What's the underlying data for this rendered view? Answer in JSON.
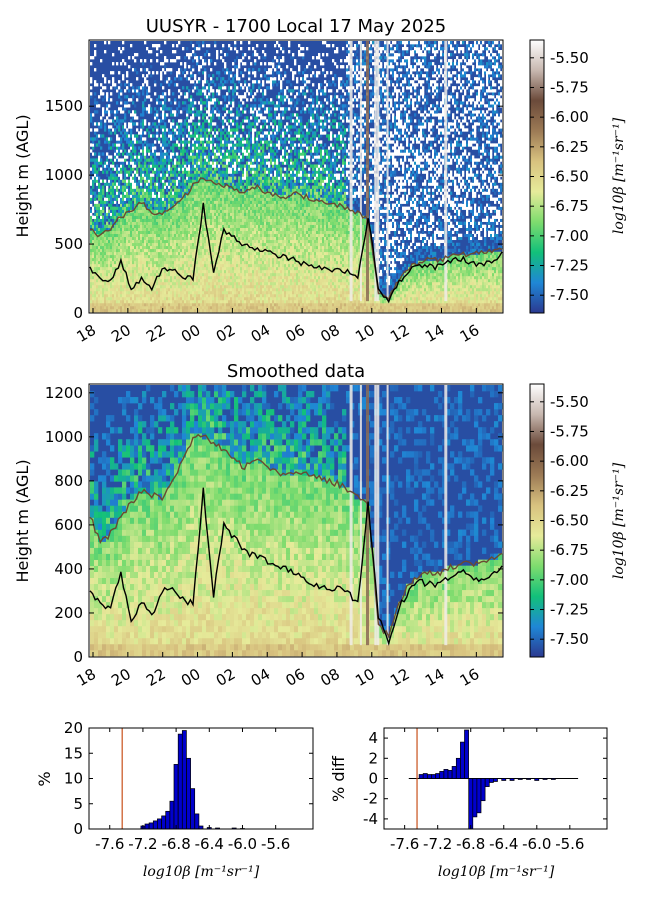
{
  "colorbar": {
    "ticks": [
      "-5.50",
      "-5.75",
      "-6.00",
      "-6.25",
      "-6.50",
      "-6.75",
      "-7.00",
      "-7.25",
      "-7.50"
    ],
    "tick_values": [
      -5.5,
      -5.75,
      -6.0,
      -6.25,
      -6.5,
      -6.75,
      -7.0,
      -7.25,
      -7.5
    ],
    "range": [
      -7.65,
      -5.35
    ],
    "label": "log10β [m⁻¹sr⁻¹]",
    "colors": [
      "#2b3990",
      "#1f87d6",
      "#12c07a",
      "#7edc6e",
      "#e6eb9a",
      "#d8c27f",
      "#9c7a55",
      "#6b4a3a",
      "#c8b8b0",
      "#ffffff"
    ]
  },
  "chart_data": [
    {
      "type": "heatmap",
      "title": "UUSYR - 1700 Local 17 May 2025",
      "ylabel": "Height m (AGL)",
      "xticks": [
        "18",
        "20",
        "22",
        "00",
        "02",
        "04",
        "06",
        "08",
        "10",
        "12",
        "14",
        "16"
      ],
      "yticks": [
        "0",
        "500",
        "1000",
        "1500"
      ],
      "ylim": [
        0,
        1980
      ],
      "series": [
        {
          "values": [
            310,
            240,
            220,
            380,
            170,
            250,
            180,
            300,
            320,
            260,
            240,
            780,
            280,
            600,
            540,
            480,
            470,
            450,
            420,
            400,
            380,
            340,
            330,
            300,
            310,
            290,
            240,
            700,
            180,
            70,
            220,
            300,
            340,
            330,
            330,
            370,
            390,
            360,
            340,
            370,
            420
          ]
        },
        {
          "values": [
            600,
            560,
            600,
            700,
            740,
            800,
            720,
            720,
            760,
            820,
            930,
            980,
            960,
            920,
            900,
            870,
            920,
            880,
            860,
            840,
            860,
            840,
            820,
            800,
            780,
            760,
            720,
            680,
            150,
            100,
            240,
            330,
            370,
            380,
            380,
            410,
            420,
            420,
            430,
            450,
            450
          ]
        }
      ]
    },
    {
      "type": "heatmap",
      "title": "Smoothed data",
      "ylabel": "Height m (AGL)",
      "xticks": [
        "18",
        "20",
        "22",
        "00",
        "02",
        "04",
        "06",
        "08",
        "10",
        "12",
        "14",
        "16"
      ],
      "yticks": [
        "0",
        "200",
        "400",
        "600",
        "800",
        "1000",
        "1200"
      ],
      "ylim": [
        0,
        1240
      ],
      "series": [
        {
          "values": [
            300,
            240,
            220,
            380,
            160,
            250,
            180,
            300,
            320,
            260,
            240,
            760,
            280,
            600,
            540,
            480,
            460,
            440,
            420,
            400,
            380,
            340,
            330,
            300,
            310,
            290,
            240,
            700,
            180,
            60,
            220,
            300,
            340,
            330,
            330,
            370,
            390,
            360,
            340,
            370,
            420
          ]
        },
        {
          "values": [
            640,
            520,
            560,
            640,
            700,
            760,
            740,
            720,
            800,
            900,
            1000,
            1000,
            980,
            940,
            900,
            860,
            900,
            880,
            850,
            820,
            840,
            830,
            820,
            800,
            790,
            760,
            720,
            700,
            140,
            90,
            240,
            330,
            370,
            380,
            380,
            410,
            420,
            420,
            430,
            450,
            460
          ]
        }
      ]
    },
    {
      "type": "bar",
      "ylabel": "%",
      "xlabel": "log10β [m⁻¹sr⁻¹]",
      "xticks": [
        "-7.6",
        "-7.2",
        "-6.8",
        "-6.4",
        "-6.0",
        "-5.6"
      ],
      "yticks": [
        "0",
        "5",
        "10",
        "15",
        "20"
      ],
      "xlim": [
        -7.85,
        -5.15
      ],
      "ylim": [
        0,
        20
      ],
      "vline": -7.45,
      "x": [
        -7.2,
        -7.15,
        -7.1,
        -7.05,
        -7.0,
        -6.95,
        -6.9,
        -6.85,
        -6.8,
        -6.75,
        -6.7,
        -6.65,
        -6.6,
        -6.55,
        -6.5,
        -6.4,
        -6.3,
        -6.1,
        -6.0
      ],
      "values": [
        0.6,
        1.0,
        1.2,
        1.6,
        2.0,
        2.6,
        3.5,
        5.5,
        12.8,
        18.8,
        19.5,
        14.0,
        8.0,
        3.0,
        0.6,
        0.3,
        0.2,
        0.2,
        0.1
      ]
    },
    {
      "type": "bar",
      "ylabel": "% diff",
      "xlabel": "log10β [m⁻¹sr⁻¹]",
      "xticks": [
        "-7.6",
        "-7.2",
        "-6.8",
        "-6.4",
        "-6.0",
        "-5.6"
      ],
      "yticks": [
        "-4",
        "-2",
        "0",
        "2",
        "4"
      ],
      "xlim": [
        -7.85,
        -5.15
      ],
      "ylim": [
        -5,
        5
      ],
      "vline": -7.45,
      "x": [
        -7.4,
        -7.35,
        -7.3,
        -7.25,
        -7.2,
        -7.15,
        -7.1,
        -7.05,
        -7.0,
        -6.95,
        -6.9,
        -6.85,
        -6.8,
        -6.75,
        -6.7,
        -6.65,
        -6.6,
        -6.55,
        -6.5,
        -6.4,
        -6.3,
        -6.2,
        -6.1,
        -6.0,
        -5.9,
        -5.8
      ],
      "values": [
        0.4,
        0.5,
        0.4,
        0.4,
        0.5,
        0.7,
        0.9,
        0.8,
        1.2,
        2.0,
        3.6,
        4.8,
        -5.0,
        -3.8,
        -3.4,
        -2.2,
        -0.8,
        -0.4,
        -0.3,
        -0.2,
        -0.2,
        -0.1,
        -0.1,
        -0.2,
        -0.1,
        -0.1
      ]
    }
  ]
}
